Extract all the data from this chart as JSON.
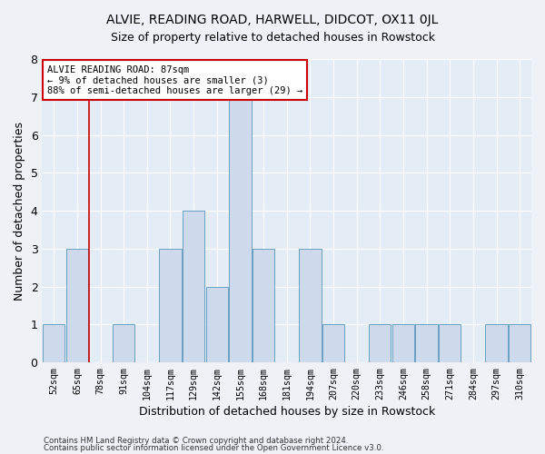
{
  "title": "ALVIE, READING ROAD, HARWELL, DIDCOT, OX11 0JL",
  "subtitle": "Size of property relative to detached houses in Rowstock",
  "xlabel": "Distribution of detached houses by size in Rowstock",
  "ylabel": "Number of detached properties",
  "categories": [
    "52sqm",
    "65sqm",
    "78sqm",
    "91sqm",
    "104sqm",
    "117sqm",
    "129sqm",
    "142sqm",
    "155sqm",
    "168sqm",
    "181sqm",
    "194sqm",
    "207sqm",
    "220sqm",
    "233sqm",
    "246sqm",
    "258sqm",
    "271sqm",
    "284sqm",
    "297sqm",
    "310sqm"
  ],
  "values": [
    1,
    3,
    0,
    1,
    0,
    3,
    4,
    2,
    7,
    3,
    0,
    3,
    1,
    0,
    1,
    1,
    1,
    1,
    0,
    1,
    1
  ],
  "bar_color": "#cddaeb",
  "bar_edge_color": "#6a9fc0",
  "ylim": [
    0,
    8
  ],
  "yticks": [
    0,
    1,
    2,
    3,
    4,
    5,
    6,
    7,
    8
  ],
  "vline_x": 1.5,
  "vline_color": "#cc0000",
  "annotation_text": "ALVIE READING ROAD: 87sqm\n← 9% of detached houses are smaller (3)\n88% of semi-detached houses are larger (29) →",
  "annotation_box_color": "#ffffff",
  "annotation_box_edge": "#cc0000",
  "footer1": "Contains HM Land Registry data © Crown copyright and database right 2024.",
  "footer2": "Contains public sector information licensed under the Open Government Licence v3.0.",
  "background_color": "#eef2f7",
  "plot_bg_color": "#e4ecf5",
  "title_fontsize": 10,
  "subtitle_fontsize": 9,
  "ylabel_fontsize": 9,
  "xlabel_fontsize": 9
}
